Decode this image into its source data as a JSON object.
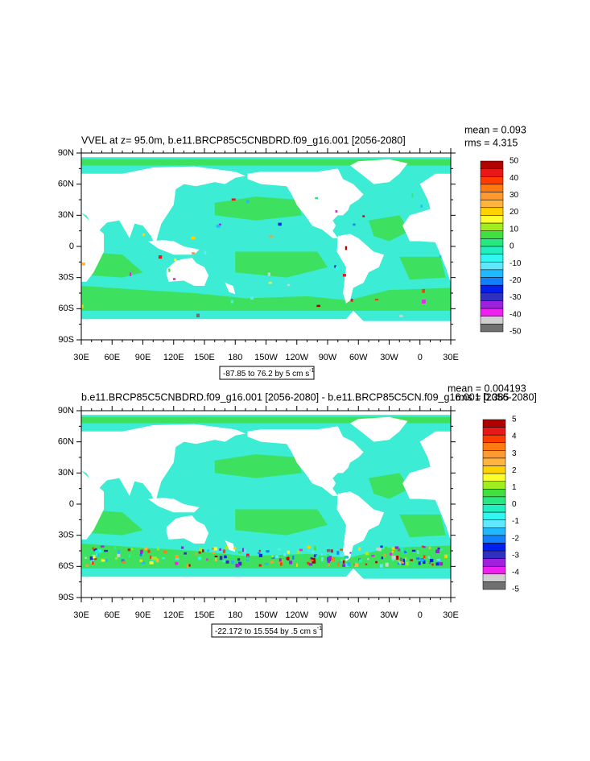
{
  "panels": [
    {
      "title": "VVEL at z=  95.0m, b.e11.BRCP85C5CNBDRD.f09_g16.001 [2056-2080]",
      "mean": "mean = 0.093",
      "rms": "rms = 4.315",
      "x_labels": [
        "30E",
        "60E",
        "90E",
        "120E",
        "150E",
        "180",
        "150W",
        "120W",
        "90W",
        "60W",
        "30W",
        "0",
        "30E"
      ],
      "y_labels": [
        "90N",
        "60N",
        "30N",
        "0",
        "30S",
        "60S",
        "90S"
      ],
      "info": "-87.85 to 76.2 by 5 cm s",
      "info_exponent": "-1",
      "colorbar_labels": [
        50,
        40,
        30,
        20,
        10,
        0,
        -10,
        -20,
        -30,
        -40,
        -50
      ]
    },
    {
      "title": "b.e11.BRCP85C5CNBDRD.f09_g16.001 [2056-2080] - b.e11.BRCP85C5CN.f09_g16.001 [2056-2080]",
      "mean": "mean = 0.004193",
      "rms": "rms = 0.385",
      "x_labels": [
        "30E",
        "60E",
        "90E",
        "120E",
        "150E",
        "180",
        "150W",
        "120W",
        "90W",
        "60W",
        "30W",
        "0",
        "30E"
      ],
      "y_labels": [
        "90N",
        "60N",
        "30N",
        "0",
        "30S",
        "60S",
        "90S"
      ],
      "info": "-22.172 to 15.554 by .5 cm s",
      "info_exponent": "-1",
      "colorbar_labels": [
        5,
        4,
        3,
        2,
        1,
        0,
        -1,
        -2,
        -3,
        -4,
        -5
      ]
    }
  ],
  "colorbar_colors": [
    "#b00000",
    "#e81818",
    "#ff3c00",
    "#ff7a10",
    "#ff9a30",
    "#ffb440",
    "#ffd200",
    "#ffff30",
    "#a0ee20",
    "#40e040",
    "#28e880",
    "#20f0c0",
    "#30f8f0",
    "#60e8ff",
    "#20b8ff",
    "#1080ff",
    "#0020f0",
    "#3030c0",
    "#a020e0",
    "#f020f0"
  ],
  "colorbar_tail": [
    "#d0d0d0",
    "#707070"
  ]
}
